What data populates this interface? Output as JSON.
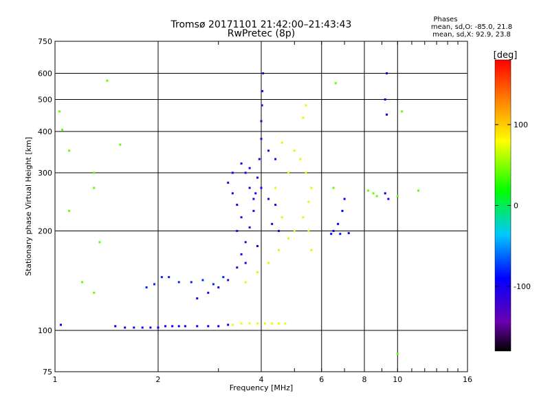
{
  "chart_data": {
    "type": "scatter",
    "title": "Tromsø 20171101 21:42:00–21:43:43",
    "subtitle": "RwPretec (8p)",
    "stats": {
      "heading": "Phases",
      "line1": "mean, sd,O: -85.0, 21.8",
      "line2": "mean, sd,X:  92.9, 23.8"
    },
    "xlabel": "Frequency [MHz]",
    "ylabel": "Stationary phase Virtual Height [km]",
    "x_scale": "log",
    "y_scale": "log",
    "xlim": [
      1,
      16
    ],
    "ylim": [
      75,
      750
    ],
    "x_ticks": [
      1,
      2,
      4,
      6,
      8,
      10,
      16
    ],
    "x_tick_labels": [
      "1",
      "2",
      "4",
      "6",
      "8",
      "10",
      "16"
    ],
    "y_ticks": [
      75,
      100,
      200,
      300,
      400,
      500,
      600,
      750
    ],
    "y_tick_labels": [
      "75",
      "100",
      "200",
      "300",
      "400",
      "500",
      "600",
      "750"
    ],
    "grid": true,
    "colorbar": {
      "label": "[deg]",
      "range": [
        -180,
        180
      ],
      "ticks": [
        100,
        0,
        -100
      ],
      "tick_labels": [
        "100",
        "0",
        "-100"
      ]
    },
    "series": [
      {
        "trace": "lower-trace",
        "phase": -95,
        "points": [
          [
            1.04,
            104
          ],
          [
            1.5,
            103
          ],
          [
            1.6,
            102
          ],
          [
            1.7,
            102
          ],
          [
            1.8,
            102
          ],
          [
            1.9,
            102
          ],
          [
            2.0,
            102
          ],
          [
            2.1,
            103
          ],
          [
            2.2,
            103
          ],
          [
            2.3,
            103
          ],
          [
            2.4,
            103
          ],
          [
            2.6,
            103
          ],
          [
            2.8,
            103
          ],
          [
            3.0,
            103
          ],
          [
            3.2,
            104
          ]
        ]
      },
      {
        "trace": "lower-trace-high",
        "phase": 75,
        "points": [
          [
            3.3,
            104
          ],
          [
            3.5,
            105
          ],
          [
            3.7,
            105
          ],
          [
            3.9,
            105
          ],
          [
            4.1,
            105
          ],
          [
            4.3,
            105
          ],
          [
            4.5,
            105
          ],
          [
            4.7,
            105
          ]
        ]
      },
      {
        "trace": "mid-trace",
        "phase": -80,
        "points": [
          [
            1.85,
            135
          ],
          [
            1.95,
            138
          ],
          [
            2.05,
            145
          ],
          [
            2.15,
            145
          ],
          [
            2.3,
            140
          ],
          [
            2.5,
            140
          ],
          [
            2.7,
            142
          ],
          [
            2.9,
            138
          ],
          [
            3.1,
            145
          ]
        ]
      },
      {
        "trace": "o-mode-rise",
        "phase": -110,
        "points": [
          [
            2.6,
            125
          ],
          [
            2.8,
            130
          ],
          [
            3.0,
            135
          ],
          [
            3.2,
            142
          ],
          [
            3.4,
            155
          ],
          [
            3.5,
            170
          ],
          [
            3.6,
            185
          ],
          [
            3.7,
            205
          ],
          [
            3.8,
            230
          ],
          [
            3.85,
            260
          ],
          [
            3.9,
            290
          ],
          [
            3.95,
            330
          ],
          [
            4.0,
            380
          ],
          [
            4.0,
            430
          ],
          [
            4.02,
            480
          ],
          [
            4.03,
            530
          ],
          [
            4.05,
            600
          ]
        ]
      },
      {
        "trace": "o-mode-cloud",
        "phase": -105,
        "points": [
          [
            3.2,
            280
          ],
          [
            3.3,
            260
          ],
          [
            3.4,
            240
          ],
          [
            3.5,
            220
          ],
          [
            3.6,
            300
          ],
          [
            3.7,
            270
          ],
          [
            3.8,
            250
          ],
          [
            3.3,
            300
          ],
          [
            3.5,
            320
          ],
          [
            3.7,
            310
          ],
          [
            4.0,
            270
          ],
          [
            4.2,
            250
          ],
          [
            4.3,
            210
          ],
          [
            4.4,
            240
          ],
          [
            4.5,
            200
          ],
          [
            4.2,
            350
          ],
          [
            4.4,
            330
          ],
          [
            3.9,
            180
          ],
          [
            3.6,
            160
          ],
          [
            3.4,
            200
          ]
        ]
      },
      {
        "trace": "x-mode-cloud",
        "phase": 70,
        "points": [
          [
            3.6,
            140
          ],
          [
            3.9,
            150
          ],
          [
            4.2,
            160
          ],
          [
            4.5,
            175
          ],
          [
            4.8,
            190
          ],
          [
            5.0,
            200
          ],
          [
            5.3,
            220
          ],
          [
            5.5,
            245
          ],
          [
            5.6,
            270
          ],
          [
            5.4,
            300
          ],
          [
            5.2,
            330
          ],
          [
            5.0,
            350
          ],
          [
            4.8,
            300
          ],
          [
            5.5,
            200
          ],
          [
            5.6,
            175
          ],
          [
            4.6,
            220
          ],
          [
            4.4,
            270
          ],
          [
            4.6,
            370
          ],
          [
            5.3,
            440
          ],
          [
            5.4,
            480
          ]
        ]
      },
      {
        "trace": "high-freq-patch",
        "phase": -90,
        "points": [
          [
            6.5,
            200
          ],
          [
            6.7,
            210
          ],
          [
            6.9,
            230
          ],
          [
            7.0,
            250
          ],
          [
            6.4,
            196
          ],
          [
            6.8,
            196
          ],
          [
            7.2,
            197
          ],
          [
            9.2,
            260
          ],
          [
            9.4,
            250
          ],
          [
            9.3,
            600
          ],
          [
            9.2,
            500
          ],
          [
            9.3,
            450
          ]
        ]
      },
      {
        "trace": "scattered",
        "phase": 40,
        "points": [
          [
            1.03,
            460
          ],
          [
            1.05,
            405
          ],
          [
            1.1,
            350
          ],
          [
            1.3,
            300
          ],
          [
            1.3,
            270
          ],
          [
            1.1,
            230
          ],
          [
            1.2,
            140
          ],
          [
            1.35,
            185
          ],
          [
            1.3,
            130
          ],
          [
            1.42,
            570
          ],
          [
            1.55,
            365
          ],
          [
            6.5,
            270
          ],
          [
            6.6,
            560
          ],
          [
            8.2,
            265
          ],
          [
            8.5,
            260
          ],
          [
            8.7,
            255
          ],
          [
            10.0,
            255
          ],
          [
            10.3,
            460
          ],
          [
            11.5,
            265
          ],
          [
            10.0,
            85
          ]
        ]
      }
    ]
  }
}
